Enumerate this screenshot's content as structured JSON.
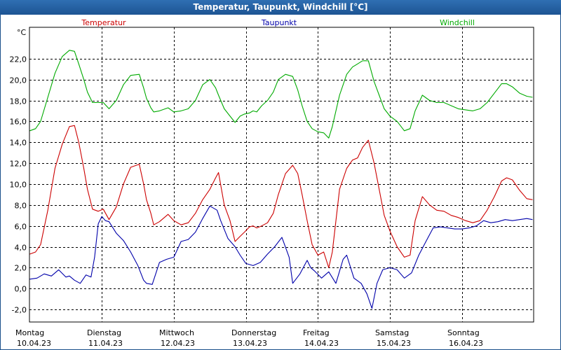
{
  "chart_data": {
    "type": "line",
    "title": "Temperatur, Taupunkt, Windchill [°C]",
    "ylabel": "°C",
    "ylim": [
      -3.2,
      25.0
    ],
    "xlim": [
      0,
      7
    ],
    "grid": true,
    "y_ticks": [
      {
        "value": 22.0,
        "label": "22,0"
      },
      {
        "value": 20.0,
        "label": "20,0"
      },
      {
        "value": 18.0,
        "label": "18,0"
      },
      {
        "value": 16.0,
        "label": "16,0"
      },
      {
        "value": 14.0,
        "label": "14,0"
      },
      {
        "value": 12.0,
        "label": "12,0"
      },
      {
        "value": 10.0,
        "label": "10,0"
      },
      {
        "value": 8.0,
        "label": "8,0"
      },
      {
        "value": 6.0,
        "label": "6,0"
      },
      {
        "value": 4.0,
        "label": "4,0"
      },
      {
        "value": 2.0,
        "label": "2,0"
      },
      {
        "value": 0.0,
        "label": "0,0"
      },
      {
        "value": -2.0,
        "label": "-2,0"
      }
    ],
    "x_ticks": [
      {
        "value": 0,
        "day": "Montag",
        "date": "10.04.23"
      },
      {
        "value": 1,
        "day": "Dienstag",
        "date": "11.04.23"
      },
      {
        "value": 2,
        "day": "Mittwoch",
        "date": "12.04.23"
      },
      {
        "value": 3,
        "day": "Donnerstag",
        "date": "13.04.23"
      },
      {
        "value": 4,
        "day": "Freitag",
        "date": "14.04.23"
      },
      {
        "value": 5,
        "day": "Samstag",
        "date": "15.04.23"
      },
      {
        "value": 6,
        "day": "Sonntag",
        "date": "16.04.23"
      }
    ],
    "series": [
      {
        "name": "Temperatur",
        "color": "#cc0000",
        "x": [
          0,
          0.08,
          0.15,
          0.25,
          0.35,
          0.45,
          0.55,
          0.62,
          0.68,
          0.75,
          0.8,
          0.87,
          0.95,
          1.02,
          1.1,
          1.2,
          1.3,
          1.4,
          1.52,
          1.58,
          1.62,
          1.68,
          1.72,
          1.8,
          1.92,
          2.0,
          2.1,
          2.2,
          2.3,
          2.4,
          2.5,
          2.58,
          2.62,
          2.7,
          2.78,
          2.85,
          2.92,
          2.98,
          3.05,
          3.1,
          3.15,
          3.22,
          3.3,
          3.38,
          3.45,
          3.55,
          3.65,
          3.72,
          3.78,
          3.85,
          3.92,
          4.0,
          4.08,
          4.15,
          4.2,
          4.3,
          4.4,
          4.48,
          4.55,
          4.62,
          4.7,
          4.78,
          4.85,
          4.92,
          5.0,
          5.1,
          5.2,
          5.28,
          5.35,
          5.45,
          5.55,
          5.65,
          5.75,
          5.85,
          5.95,
          6.05,
          6.15,
          6.25,
          6.35,
          6.45,
          6.55,
          6.62,
          6.7,
          6.8,
          6.9,
          6.98
        ],
        "values": [
          3.3,
          3.5,
          4.2,
          7.5,
          11.5,
          13.8,
          15.5,
          15.6,
          14.0,
          11.5,
          9.5,
          7.6,
          7.4,
          7.6,
          6.6,
          7.8,
          10.0,
          11.6,
          11.9,
          10.0,
          8.5,
          7.2,
          6.1,
          6.4,
          7.1,
          6.5,
          6.1,
          6.3,
          7.2,
          8.5,
          9.5,
          10.6,
          11.1,
          8.0,
          6.5,
          4.5,
          5.0,
          5.4,
          5.9,
          6.0,
          5.8,
          6.0,
          6.3,
          7.2,
          9.0,
          11.0,
          11.8,
          11.0,
          9.0,
          6.5,
          4.2,
          3.2,
          3.5,
          2.0,
          3.5,
          9.5,
          11.5,
          12.3,
          12.5,
          13.5,
          14.2,
          12.0,
          9.5,
          7.0,
          5.5,
          4.0,
          3.0,
          3.2,
          6.5,
          8.8,
          8.0,
          7.5,
          7.4,
          7.0,
          6.8,
          6.5,
          6.3,
          6.5,
          7.5,
          8.8,
          10.3,
          10.6,
          10.4,
          9.4,
          8.6,
          8.5
        ]
      },
      {
        "name": "Taupunkt",
        "color": "#0000aa",
        "x": [
          0,
          0.1,
          0.2,
          0.3,
          0.4,
          0.5,
          0.55,
          0.62,
          0.7,
          0.78,
          0.85,
          0.9,
          0.95,
          1.0,
          1.05,
          1.1,
          1.2,
          1.3,
          1.4,
          1.5,
          1.58,
          1.62,
          1.7,
          1.8,
          1.9,
          2.0,
          2.1,
          2.2,
          2.3,
          2.4,
          2.5,
          2.6,
          2.65,
          2.75,
          2.85,
          2.92,
          3.0,
          3.1,
          3.2,
          3.3,
          3.4,
          3.5,
          3.6,
          3.65,
          3.75,
          3.85,
          3.9,
          3.95,
          4.05,
          4.15,
          4.25,
          4.35,
          4.4,
          4.5,
          4.6,
          4.68,
          4.75,
          4.82,
          4.9,
          5.0,
          5.1,
          5.2,
          5.3,
          5.4,
          5.5,
          5.6,
          5.7,
          5.8,
          5.9,
          6.0,
          6.1,
          6.2,
          6.3,
          6.4,
          6.5,
          6.6,
          6.7,
          6.8,
          6.9,
          6.98
        ],
        "values": [
          0.9,
          1.0,
          1.4,
          1.2,
          1.8,
          1.1,
          1.2,
          0.8,
          0.5,
          1.3,
          1.1,
          3.0,
          6.2,
          6.9,
          6.5,
          6.4,
          5.3,
          4.6,
          3.5,
          2.2,
          0.8,
          0.5,
          0.4,
          2.5,
          2.8,
          3.0,
          4.5,
          4.7,
          5.4,
          6.7,
          7.9,
          7.5,
          6.5,
          4.8,
          4.0,
          3.2,
          2.4,
          2.2,
          2.5,
          3.3,
          4.0,
          4.9,
          3.0,
          0.5,
          1.4,
          2.7,
          2.0,
          1.7,
          1.0,
          1.6,
          0.5,
          2.8,
          3.2,
          1.0,
          0.5,
          -0.5,
          -1.9,
          0.5,
          1.8,
          2.0,
          1.8,
          1.0,
          1.5,
          3.2,
          4.5,
          5.8,
          5.9,
          5.8,
          5.7,
          5.7,
          5.8,
          6.0,
          6.5,
          6.3,
          6.4,
          6.6,
          6.5,
          6.6,
          6.7,
          6.6
        ]
      },
      {
        "name": "Windchill",
        "color": "#00aa00",
        "x": [
          0,
          0.08,
          0.15,
          0.25,
          0.35,
          0.45,
          0.55,
          0.62,
          0.68,
          0.75,
          0.8,
          0.87,
          0.95,
          1.02,
          1.1,
          1.2,
          1.3,
          1.4,
          1.52,
          1.58,
          1.62,
          1.68,
          1.72,
          1.8,
          1.92,
          2.0,
          2.1,
          2.2,
          2.3,
          2.4,
          2.5,
          2.58,
          2.62,
          2.7,
          2.78,
          2.85,
          2.92,
          2.98,
          3.05,
          3.1,
          3.15,
          3.22,
          3.3,
          3.38,
          3.45,
          3.55,
          3.65,
          3.72,
          3.78,
          3.85,
          3.92,
          4.0,
          4.08,
          4.15,
          4.2,
          4.3,
          4.4,
          4.48,
          4.55,
          4.62,
          4.7,
          4.78,
          4.85,
          4.92,
          5.0,
          5.1,
          5.2,
          5.28,
          5.35,
          5.45,
          5.55,
          5.65,
          5.75,
          5.85,
          5.95,
          6.05,
          6.15,
          6.25,
          6.35,
          6.45,
          6.55,
          6.62,
          6.7,
          6.8,
          6.9,
          6.98
        ],
        "values": [
          15.1,
          15.3,
          16.0,
          18.3,
          20.6,
          22.2,
          22.8,
          22.7,
          21.5,
          20.0,
          18.8,
          17.8,
          17.8,
          17.8,
          17.2,
          18.0,
          19.5,
          20.4,
          20.5,
          19.2,
          18.2,
          17.3,
          16.9,
          17.0,
          17.3,
          16.9,
          17.0,
          17.2,
          18.0,
          19.5,
          20.0,
          19.2,
          18.5,
          17.2,
          16.5,
          15.9,
          16.5,
          16.7,
          16.8,
          17.0,
          16.9,
          17.5,
          18.0,
          18.8,
          20.0,
          20.5,
          20.3,
          19.0,
          17.5,
          16.0,
          15.3,
          15.0,
          14.9,
          14.4,
          15.5,
          18.5,
          20.5,
          21.2,
          21.5,
          21.8,
          21.8,
          19.8,
          18.5,
          17.2,
          16.5,
          16.0,
          15.1,
          15.3,
          17.0,
          18.5,
          18.0,
          17.8,
          17.8,
          17.5,
          17.2,
          17.1,
          17.0,
          17.2,
          17.8,
          18.7,
          19.6,
          19.6,
          19.3,
          18.7,
          18.4,
          18.3
        ]
      }
    ]
  }
}
